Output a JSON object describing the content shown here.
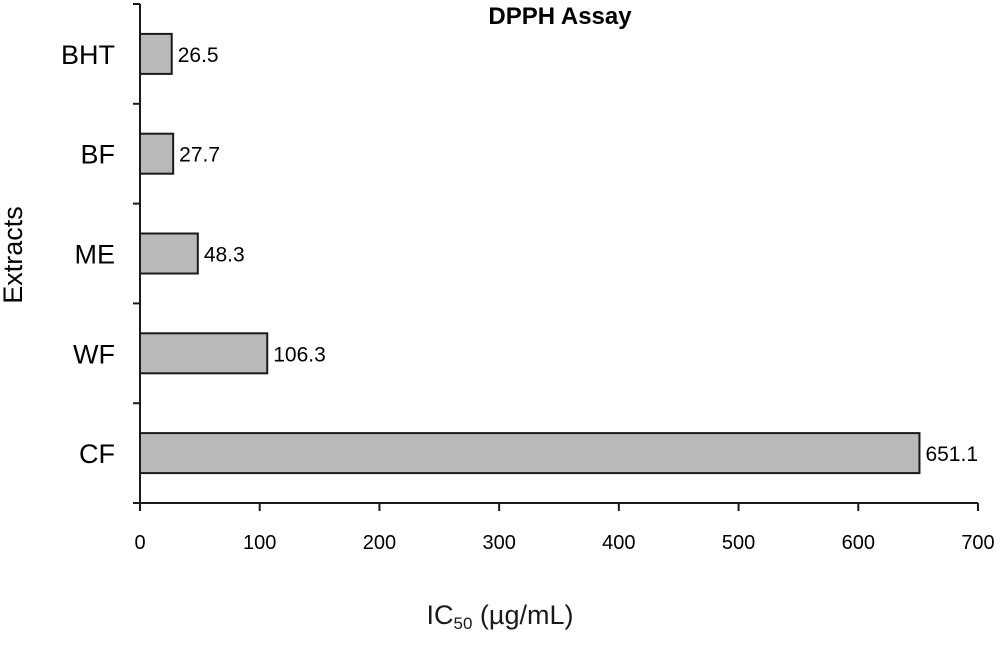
{
  "chart_data": {
    "type": "bar",
    "orientation": "horizontal",
    "title": "DPPH Assay",
    "ylabel": "Extracts",
    "xlabel": {
      "main": "IC",
      "sub": "50",
      "unit": " (µg/mL)"
    },
    "categories": [
      "BHT",
      "BF",
      "ME",
      "WF",
      "CF"
    ],
    "values": [
      26.5,
      27.7,
      48.3,
      106.3,
      651.1
    ],
    "value_labels": [
      "26.5",
      "27.7",
      "48.3",
      "106.3",
      "651.1"
    ],
    "xlim": [
      0,
      700
    ],
    "xticks": [
      0,
      100,
      200,
      300,
      400,
      500,
      600,
      700
    ],
    "bar_color": "#b9b9b9",
    "edge_color": "#1a1a1a",
    "grid": false,
    "legend": "none"
  }
}
